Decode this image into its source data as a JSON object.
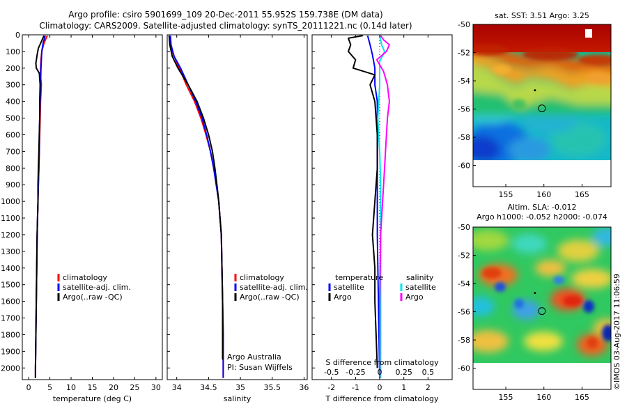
{
  "title_line1": "Argo profile: csiro 5901699_109 20-Dec-2011 55.952S 159.738E (DM data)",
  "title_line2": "Climatology: CARS2009. Satellite-adjusted climatology: synTS_20111221.nc (0.14d later)",
  "credit": "©IMOS 03-Aug-2017 11:06:59",
  "chart_data": [
    {
      "type": "line",
      "id": "temperature",
      "xlabel": "temperature (deg C)",
      "xticks": [
        0,
        5,
        10,
        15,
        20,
        25,
        30
      ],
      "xlim": [
        -1.5,
        31.5
      ],
      "ylim": [
        2070,
        0
      ],
      "yticks": [
        0,
        100,
        200,
        300,
        400,
        500,
        600,
        700,
        800,
        900,
        1000,
        1100,
        1200,
        1300,
        1400,
        1500,
        1600,
        1700,
        1800,
        1900,
        2000
      ],
      "legend": [
        "climatology",
        "satellite-adj. clim.",
        "Argo(..raw -QC)"
      ],
      "legend_colors": [
        "#ff0000",
        "#0000ff",
        "#000000"
      ],
      "series": [
        {
          "name": "climatology",
          "color": "#ff0000",
          "points": [
            [
              4.4,
              5
            ],
            [
              3.6,
              50
            ],
            [
              3.1,
              100
            ],
            [
              2.9,
              150
            ],
            [
              2.8,
              200
            ],
            [
              2.8,
              250
            ],
            [
              3.0,
              300
            ],
            [
              2.9,
              350
            ],
            [
              2.8,
              400
            ],
            [
              2.7,
              500
            ],
            [
              2.6,
              600
            ],
            [
              2.5,
              700
            ],
            [
              2.4,
              800
            ],
            [
              2.3,
              900
            ],
            [
              2.2,
              1000
            ],
            [
              2.1,
              1100
            ],
            [
              2.0,
              1200
            ],
            [
              1.9,
              1400
            ],
            [
              1.8,
              1600
            ],
            [
              1.7,
              1800
            ],
            [
              1.6,
              2000
            ],
            [
              1.6,
              2060
            ]
          ]
        },
        {
          "name": "satellite-adj. clim.",
          "color": "#0000ff",
          "points": [
            [
              3.9,
              5
            ],
            [
              3.4,
              50
            ],
            [
              3.1,
              100
            ],
            [
              3.0,
              150
            ],
            [
              2.9,
              200
            ],
            [
              2.8,
              300
            ],
            [
              2.7,
              400
            ],
            [
              2.6,
              500
            ],
            [
              2.5,
              600
            ],
            [
              2.5,
              700
            ],
            [
              2.4,
              800
            ],
            [
              2.3,
              900
            ],
            [
              2.2,
              1000
            ],
            [
              2.1,
              1100
            ],
            [
              2.0,
              1200
            ],
            [
              1.9,
              1400
            ],
            [
              1.8,
              1600
            ],
            [
              1.7,
              1800
            ],
            [
              1.6,
              2000
            ],
            [
              1.6,
              2060
            ]
          ]
        },
        {
          "name": "Argo(..raw -QC)",
          "color": "#000000",
          "points": [
            [
              3.6,
              5
            ],
            [
              3.0,
              40
            ],
            [
              2.3,
              80
            ],
            [
              2.0,
              120
            ],
            [
              1.7,
              170
            ],
            [
              1.8,
              200
            ],
            [
              2.5,
              230
            ],
            [
              2.7,
              300
            ],
            [
              2.6,
              400
            ],
            [
              2.6,
              500
            ],
            [
              2.5,
              600
            ],
            [
              2.4,
              700
            ],
            [
              2.3,
              800
            ],
            [
              2.2,
              900
            ],
            [
              2.2,
              1000
            ],
            [
              2.1,
              1100
            ],
            [
              2.0,
              1200
            ],
            [
              1.9,
              1400
            ],
            [
              1.8,
              1600
            ],
            [
              1.7,
              1800
            ],
            [
              1.6,
              2000
            ],
            [
              1.6,
              2060
            ]
          ]
        }
      ]
    },
    {
      "type": "line",
      "id": "salinity",
      "xlabel": "salinity",
      "xticks": [
        34,
        34.5,
        35,
        35.5,
        36
      ],
      "xlim": [
        33.85,
        36.05
      ],
      "ylim": [
        2070,
        0
      ],
      "legend": [
        "climatology",
        "satellite-adj. clim.",
        "Argo(..raw -QC)"
      ],
      "legend_colors": [
        "#ff0000",
        "#0000ff",
        "#000000"
      ],
      "annotation": [
        "Argo Australia",
        "PI: Susan Wijffels"
      ],
      "series": [
        {
          "name": "climatology",
          "color": "#ff0000",
          "points": [
            [
              33.88,
              5
            ],
            [
              33.9,
              60
            ],
            [
              33.95,
              120
            ],
            [
              34.04,
              200
            ],
            [
              34.15,
              300
            ],
            [
              34.28,
              400
            ],
            [
              34.38,
              500
            ],
            [
              34.46,
              600
            ],
            [
              34.53,
              700
            ],
            [
              34.58,
              800
            ],
            [
              34.63,
              900
            ],
            [
              34.66,
              1000
            ],
            [
              34.68,
              1100
            ],
            [
              34.7,
              1200
            ],
            [
              34.71,
              1400
            ],
            [
              34.72,
              1600
            ],
            [
              34.73,
              1800
            ],
            [
              34.73,
              2060
            ]
          ]
        },
        {
          "name": "satellite-adj. clim.",
          "color": "#0000ff",
          "points": [
            [
              33.9,
              5
            ],
            [
              33.91,
              60
            ],
            [
              33.96,
              130
            ],
            [
              34.06,
              200
            ],
            [
              34.18,
              300
            ],
            [
              34.3,
              400
            ],
            [
              34.4,
              500
            ],
            [
              34.47,
              600
            ],
            [
              34.53,
              700
            ],
            [
              34.58,
              800
            ],
            [
              34.62,
              900
            ],
            [
              34.66,
              1000
            ],
            [
              34.68,
              1100
            ],
            [
              34.7,
              1200
            ],
            [
              34.71,
              1400
            ],
            [
              34.72,
              1600
            ],
            [
              34.73,
              1800
            ],
            [
              34.73,
              2060
            ]
          ]
        },
        {
          "name": "Argo(..raw -QC)",
          "color": "#000000",
          "points": [
            [
              33.88,
              5
            ],
            [
              33.89,
              60
            ],
            [
              33.93,
              130
            ],
            [
              34.02,
              200
            ],
            [
              34.18,
              300
            ],
            [
              34.32,
              400
            ],
            [
              34.42,
              500
            ],
            [
              34.5,
              600
            ],
            [
              34.56,
              700
            ],
            [
              34.6,
              800
            ],
            [
              34.63,
              900
            ],
            [
              34.66,
              1000
            ],
            [
              34.68,
              1100
            ],
            [
              34.7,
              1200
            ],
            [
              34.71,
              1400
            ],
            [
              34.72,
              1600
            ],
            [
              34.72,
              1800
            ],
            [
              34.72,
              1950
            ]
          ]
        }
      ]
    },
    {
      "type": "line",
      "id": "difference",
      "xlabel": "T difference from climatology",
      "xlabel_top": "S difference from climatology",
      "xticks": [
        -2,
        -1,
        0,
        1,
        2
      ],
      "xticks_s": [
        -0.5,
        -0.25,
        0,
        0.25,
        0.5
      ],
      "xlim": [
        -2.8,
        3.0
      ],
      "ylim": [
        2070,
        0
      ],
      "legend_left_title": "temperature",
      "legend_right_title": "salinity",
      "legend_left": [
        "satellite",
        "Argo"
      ],
      "legend_right": [
        "satellite",
        "Argo"
      ],
      "legend_left_colors": [
        "#0000ff",
        "#000000"
      ],
      "legend_right_colors": [
        "#00e5ee",
        "#ff00ff"
      ],
      "series": [
        {
          "name": "T satellite",
          "color": "#0000ff",
          "points": [
            [
              -0.5,
              5
            ],
            [
              -0.4,
              60
            ],
            [
              -0.3,
              120
            ],
            [
              -0.2,
              200
            ],
            [
              -0.2,
              300
            ],
            [
              -0.1,
              400
            ],
            [
              -0.1,
              600
            ],
            [
              -0.1,
              800
            ],
            [
              -0.1,
              1200
            ],
            [
              0.0,
              2060
            ]
          ]
        },
        {
          "name": "T Argo",
          "color": "#000000",
          "points": [
            [
              -0.7,
              5
            ],
            [
              -1.3,
              20
            ],
            [
              -1.2,
              60
            ],
            [
              -1.3,
              100
            ],
            [
              -1.0,
              150
            ],
            [
              -1.1,
              200
            ],
            [
              -0.2,
              240
            ],
            [
              -0.4,
              300
            ],
            [
              -0.2,
              400
            ],
            [
              -0.1,
              600
            ],
            [
              -0.1,
              800
            ],
            [
              -0.2,
              1000
            ],
            [
              -0.3,
              1200
            ],
            [
              -0.2,
              1400
            ],
            [
              -0.2,
              1600
            ],
            [
              -0.1,
              2000
            ]
          ]
        },
        {
          "name": "S satellite",
          "color": "#00e5ee",
          "points": [
            [
              0.0,
              5
            ],
            [
              0.02,
              60
            ],
            [
              0.05,
              100
            ],
            [
              0.0,
              160
            ],
            [
              0.0,
              300
            ],
            [
              -0.02,
              500
            ],
            [
              0.0,
              700
            ],
            [
              0.01,
              900
            ],
            [
              0.01,
              1200
            ],
            [
              0.01,
              1600
            ],
            [
              0.01,
              2060
            ]
          ]
        },
        {
          "name": "S Argo",
          "color": "#ff00ff",
          "points": [
            [
              0.01,
              5
            ],
            [
              0.04,
              30
            ],
            [
              0.1,
              60
            ],
            [
              0.07,
              100
            ],
            [
              -0.03,
              150
            ],
            [
              0.04,
              220
            ],
            [
              0.08,
              300
            ],
            [
              0.1,
              400
            ],
            [
              0.08,
              500
            ],
            [
              0.07,
              600
            ],
            [
              0.05,
              800
            ],
            [
              0.03,
              1000
            ],
            [
              0.01,
              1200
            ],
            [
              0.0,
              1600
            ],
            [
              0.0,
              2060
            ]
          ]
        }
      ]
    },
    {
      "type": "heatmap",
      "id": "sst",
      "title": "sat. SST: 3.51  Argo: 3.25",
      "xticks": [
        155,
        160,
        165
      ],
      "yticks": [
        -50,
        -52,
        -54,
        -56,
        -58,
        -60
      ],
      "xlim": [
        150.7,
        168.8
      ],
      "ylim": [
        -61.5,
        -50
      ],
      "float_position": [
        159.738,
        -55.952
      ]
    },
    {
      "type": "heatmap",
      "id": "sla",
      "title_line1": "Altim. SLA: -0.012",
      "title_line2": "Argo h1000: -0.052 h2000: -0.074",
      "xticks": [
        155,
        160,
        165
      ],
      "yticks": [
        -50,
        -52,
        -54,
        -56,
        -58,
        -60
      ],
      "xlim": [
        150.7,
        168.8
      ],
      "ylim": [
        -61.5,
        -50
      ],
      "float_position": [
        159.738,
        -55.952
      ]
    }
  ]
}
